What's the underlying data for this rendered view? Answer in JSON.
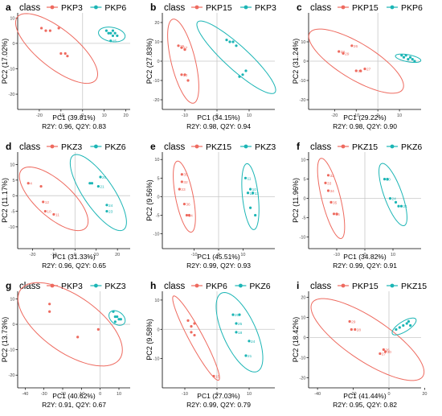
{
  "colors": {
    "red": "#ee6a5f",
    "teal": "#1bb5b5",
    "axis": "#000000",
    "refline": "#c8c8c8"
  },
  "chart_data": [
    {
      "panel": "a",
      "type": "scatter",
      "legend_title": "class",
      "groups": [
        "PKP3",
        "PKP6"
      ],
      "xlabel": "PC1 (39.81%)",
      "ylabel": "PC2 (17.02%)",
      "stats": "R2Y: 0.96, Q2Y: 0.83",
      "xlim": [
        -30,
        22
      ],
      "ylim": [
        -26,
        12
      ],
      "xticks": [
        -20,
        -10,
        0,
        10,
        20
      ],
      "yticks": [
        -20,
        -10,
        0,
        10
      ],
      "series": [
        {
          "name": "PKP3",
          "points": [
            [
              -19,
              6,
              ""
            ],
            [
              -17,
              5,
              ""
            ],
            [
              -15,
              5,
              ""
            ],
            [
              -11,
              6,
              ""
            ],
            [
              -10,
              -4,
              ""
            ],
            [
              -8,
              -4,
              ""
            ],
            [
              -7,
              -5,
              ""
            ]
          ]
        },
        {
          "name": "PKP6",
          "points": [
            [
              11,
              5,
              ""
            ],
            [
              12,
              4,
              ""
            ],
            [
              13,
              4,
              ""
            ],
            [
              14,
              5,
              ""
            ],
            [
              14,
              3,
              ""
            ],
            [
              15,
              4,
              ""
            ],
            [
              16,
              3,
              ""
            ],
            [
              13,
              1,
              "15"
            ]
          ]
        }
      ],
      "ellipses": [
        {
          "group": "PKP3",
          "cx": -12,
          "cy": -2,
          "rx": 22,
          "ry": 8,
          "angle": -33
        },
        {
          "group": "PKP6",
          "cx": 13.5,
          "cy": 3.5,
          "rx": 6.2,
          "ry": 2.8,
          "angle": -8
        }
      ]
    },
    {
      "panel": "b",
      "type": "scatter",
      "legend_title": "class",
      "groups": [
        "PKP15",
        "PKP3"
      ],
      "xlabel": "PC1 (34.15%)",
      "ylabel": "PC2 (27.83%)",
      "stats": "R2Y: 0.98, Q2Y: 0.94",
      "xlim": [
        -17,
        18
      ],
      "ylim": [
        -25,
        25
      ],
      "xticks": [
        -10,
        0,
        10
      ],
      "yticks": [
        -20,
        -10,
        0,
        10,
        20
      ],
      "series": [
        {
          "name": "PKP15",
          "points": [
            [
              -12,
              8,
              "25"
            ],
            [
              -11,
              7,
              "27"
            ],
            [
              -10,
              6,
              ""
            ],
            [
              -11,
              -7,
              "30"
            ],
            [
              -10,
              -7,
              ""
            ],
            [
              -9,
              -10,
              ""
            ]
          ]
        },
        {
          "name": "PKP3",
          "points": [
            [
              3,
              11,
              ""
            ],
            [
              4,
              10,
              ""
            ],
            [
              5,
              10,
              ""
            ],
            [
              6,
              8,
              ""
            ],
            [
              9,
              -5,
              ""
            ],
            [
              8,
              -7,
              ""
            ],
            [
              7,
              -8,
              ""
            ]
          ]
        }
      ],
      "ellipses": [
        {
          "group": "PKP15",
          "cx": -10.5,
          "cy": 0,
          "rx": 22,
          "ry": 3.8,
          "angle": -82
        },
        {
          "group": "PKP3",
          "cx": 6,
          "cy": 2,
          "rx": 22,
          "ry": 4.5,
          "angle": -58
        }
      ]
    },
    {
      "panel": "c",
      "type": "scatter",
      "legend_title": "class",
      "groups": [
        "PKP15",
        "PKP6"
      ],
      "xlabel": "PC1 (29.22%)",
      "ylabel": "PC2 (31.24%)",
      "stats": "R2Y: 0.98, Q2Y: 0.90",
      "xlim": [
        -32,
        20
      ],
      "ylim": [
        -25,
        25
      ],
      "xticks": [
        -20,
        -10,
        0,
        10
      ],
      "yticks": [
        -20,
        -10,
        0,
        10
      ],
      "series": [
        {
          "name": "PKP15",
          "points": [
            [
              -18,
              5,
              "28"
            ],
            [
              -16,
              4,
              "29"
            ],
            [
              -12,
              8,
              "26"
            ],
            [
              -10,
              -5,
              "30"
            ],
            [
              -8,
              -5,
              ""
            ],
            [
              -6,
              -4,
              "27"
            ]
          ]
        },
        {
          "name": "PKP6",
          "points": [
            [
              11,
              3,
              ""
            ],
            [
              12,
              2,
              ""
            ],
            [
              13,
              3,
              ""
            ],
            [
              14,
              1,
              ""
            ],
            [
              15,
              2,
              ""
            ],
            [
              16,
              1,
              ""
            ],
            [
              17,
              0,
              ""
            ]
          ]
        }
      ],
      "ellipses": [
        {
          "group": "PKP15",
          "cx": -10,
          "cy": 0,
          "rx": 26,
          "ry": 9,
          "angle": -35
        },
        {
          "group": "PKP6",
          "cx": 14,
          "cy": 1.5,
          "rx": 6,
          "ry": 1.8,
          "angle": -12
        }
      ]
    },
    {
      "panel": "d",
      "type": "scatter",
      "legend_title": "class",
      "groups": [
        "PKZ3",
        "PKZ6"
      ],
      "xlabel": "PC1 (31.33%)",
      "ylabel": "PC2 (11.17%)",
      "stats": "R2Y: 0.96, Q2Y: 0.65",
      "xlim": [
        -27,
        26
      ],
      "ylim": [
        -17,
        14
      ],
      "xticks": [
        -20,
        -10,
        0,
        10,
        20
      ],
      "yticks": [
        -10,
        -5,
        0,
        5,
        10
      ],
      "series": [
        {
          "name": "PKZ3",
          "points": [
            [
              -22,
              4,
              "4"
            ],
            [
              -16,
              3,
              ""
            ],
            [
              -15,
              -2,
              "12"
            ],
            [
              -14,
              -5,
              "10"
            ],
            [
              -10,
              -6,
              "11"
            ]
          ]
        },
        {
          "name": "PKZ6",
          "points": [
            [
              7,
              4,
              ""
            ],
            [
              8,
              4,
              ""
            ],
            [
              12,
              6,
              "20"
            ],
            [
              11,
              3,
              "21"
            ],
            [
              15,
              -3,
              "24"
            ],
            [
              15,
              -5,
              "23"
            ]
          ]
        }
      ],
      "ellipses": [
        {
          "group": "PKZ3",
          "cx": -10,
          "cy": -1,
          "rx": 18,
          "ry": 6.5,
          "angle": -28
        },
        {
          "group": "PKZ6",
          "cx": 11,
          "cy": 1,
          "rx": 17,
          "ry": 6,
          "angle": -42
        }
      ]
    },
    {
      "panel": "e",
      "type": "scatter",
      "legend_title": "class",
      "groups": [
        "PKZ15",
        "PKZ3"
      ],
      "xlabel": "PC1 (45.51%)",
      "ylabel": "PC2 (9.56%)",
      "stats": "R2Y: 0.99, Q2Y: 0.93",
      "xlim": [
        -23,
        23
      ],
      "ylim": [
        -14,
        12
      ],
      "xticks": [
        -10,
        0,
        10
      ],
      "yticks": [
        -10,
        -5,
        0,
        5,
        10
      ],
      "series": [
        {
          "name": "PKZ15",
          "points": [
            [
              -15,
              6,
              "35"
            ],
            [
              -15,
              4,
              "32"
            ],
            [
              -16,
              2,
              "33"
            ],
            [
              -14,
              -2,
              "36"
            ],
            [
              -13,
              -5,
              "34"
            ],
            [
              -12,
              -5,
              ""
            ]
          ]
        },
        {
          "name": "PKZ3",
          "points": [
            [
              11,
              5,
              "11"
            ],
            [
              12,
              1,
              "12"
            ],
            [
              13,
              2,
              "10"
            ],
            [
              14,
              1,
              "13"
            ],
            [
              13,
              -3,
              ""
            ],
            [
              15,
              -5,
              ""
            ]
          ]
        }
      ],
      "ellipses": [
        {
          "group": "PKZ15",
          "cx": -14,
          "cy": 0,
          "rx": 10,
          "ry": 3.5,
          "angle": -72
        },
        {
          "group": "PKZ3",
          "cx": 13,
          "cy": 0,
          "rx": 9,
          "ry": 3.2,
          "angle": -80
        }
      ]
    },
    {
      "panel": "f",
      "type": "scatter",
      "legend_title": "class",
      "groups": [
        "PKZ15",
        "PKZ6"
      ],
      "xlabel": "PC1 (34.82%)",
      "ylabel": "PC2 (11.96%)",
      "stats": "R2Y: 0.99, Q2Y: 0.91",
      "xlim": [
        -20,
        20
      ],
      "ylim": [
        -13,
        12
      ],
      "xticks": [
        -10,
        0,
        10
      ],
      "yticks": [
        -10,
        -5,
        0,
        5,
        10
      ],
      "series": [
        {
          "name": "PKZ15",
          "points": [
            [
              -13,
              6,
              "32"
            ],
            [
              -14,
              4,
              "33"
            ],
            [
              -13,
              2,
              "34"
            ],
            [
              -12,
              -1,
              "35"
            ],
            [
              -11,
              -4,
              "36"
            ],
            [
              -10,
              -4,
              ""
            ]
          ]
        },
        {
          "name": "PKZ6",
          "points": [
            [
              7,
              5,
              "20"
            ],
            [
              8,
              5,
              ""
            ],
            [
              9,
              0,
              "24"
            ],
            [
              11,
              -1,
              ""
            ],
            [
              12,
              -2,
              ""
            ],
            [
              13,
              -2,
              "21"
            ]
          ]
        }
      ],
      "ellipses": [
        {
          "group": "PKZ15",
          "cx": -12,
          "cy": 0,
          "rx": 11,
          "ry": 3.2,
          "angle": -70
        },
        {
          "group": "PKZ6",
          "cx": 10,
          "cy": 1,
          "rx": 9,
          "ry": 3,
          "angle": -62
        }
      ]
    },
    {
      "panel": "g",
      "type": "scatter",
      "legend_title": "class",
      "groups": [
        "PKP3",
        "PKZ3"
      ],
      "xlabel": "PC1 (40.62%)",
      "ylabel": "PC2 (13.73%)",
      "stats": "R2Y: 0.91, Q2Y: 0.67",
      "xlim": [
        -44,
        16
      ],
      "ylim": [
        -25,
        13
      ],
      "xticks": [
        -40,
        -30,
        -20,
        -10,
        0,
        10
      ],
      "yticks": [
        -20,
        -10,
        0,
        10
      ],
      "series": [
        {
          "name": "PKP3",
          "points": [
            [
              -27,
              8,
              ""
            ],
            [
              -27,
              5,
              ""
            ],
            [
              -12,
              -5,
              ""
            ],
            [
              -1,
              -2,
              ""
            ]
          ]
        },
        {
          "name": "PKZ3",
          "points": [
            [
              7,
              5,
              ""
            ],
            [
              8,
              3,
              ""
            ],
            [
              9,
              3,
              ""
            ],
            [
              8,
              1,
              ""
            ],
            [
              10,
              2,
              ""
            ],
            [
              11,
              2,
              ""
            ]
          ]
        }
      ],
      "ellipses": [
        {
          "group": "PKP3",
          "cx": -16,
          "cy": 0,
          "rx": 30,
          "ry": 12,
          "angle": -24
        },
        {
          "group": "PKZ3",
          "cx": 9,
          "cy": 2.5,
          "rx": 4.5,
          "ry": 2.6,
          "angle": -20
        }
      ]
    },
    {
      "panel": "h",
      "type": "scatter",
      "legend_title": "class",
      "groups": [
        "PKP6",
        "PKZ6"
      ],
      "xlabel": "PC1 (27.03%)",
      "ylabel": "PC2 (9.58%)",
      "stats": "R2Y: 0.99, Q2Y: 0.79",
      "xlim": [
        -17,
        18
      ],
      "ylim": [
        -20,
        13
      ],
      "xticks": [
        -10,
        0,
        10
      ],
      "yticks": [
        -10,
        0,
        10
      ],
      "series": [
        {
          "name": "PKP6",
          "points": [
            [
              -9,
              3,
              ""
            ],
            [
              -8,
              1,
              ""
            ],
            [
              -7,
              2,
              ""
            ],
            [
              -8,
              -1,
              ""
            ],
            [
              -7,
              -2,
              ""
            ],
            [
              -1,
              -16,
              "15"
            ]
          ]
        },
        {
          "name": "PKZ6",
          "points": [
            [
              5,
              5,
              "20"
            ],
            [
              7,
              5,
              ""
            ],
            [
              6,
              2,
              "25"
            ],
            [
              6,
              -1,
              "18"
            ],
            [
              10,
              -4,
              "24"
            ],
            [
              9,
              -9,
              "21"
            ]
          ]
        }
      ],
      "ellipses": [
        {
          "group": "PKP6",
          "cx": -6.5,
          "cy": -3,
          "rx": 16,
          "ry": 2.2,
          "angle": -64
        },
        {
          "group": "PKZ6",
          "cx": 7,
          "cy": -1,
          "rx": 14.5,
          "ry": 5.2,
          "angle": -68
        }
      ]
    },
    {
      "panel": "i",
      "type": "scatter",
      "legend_title": "class",
      "groups": [
        "PKP15",
        "PKZ15"
      ],
      "xlabel": "PC1 (41.44%)",
      "ylabel": "PC2 (18.42%)",
      "stats": "R2Y: 0.95, Q2Y: 0.82",
      "xlim": [
        -45,
        18
      ],
      "ylim": [
        -25,
        23
      ],
      "xticks": [
        -40,
        -20,
        0,
        20
      ],
      "yticks": [
        -20,
        -10,
        0,
        10,
        20
      ],
      "series": [
        {
          "name": "PKP15",
          "points": [
            [
              -22,
              8,
              "29"
            ],
            [
              -21,
              4,
              ""
            ],
            [
              -19,
              4,
              "28"
            ],
            [
              -3,
              -6,
              "26"
            ],
            [
              -2,
              -7,
              "30"
            ],
            [
              -5,
              -8,
              "27"
            ]
          ]
        },
        {
          "name": "PKZ15",
          "points": [
            [
              4,
              4,
              ""
            ],
            [
              6,
              5,
              ""
            ],
            [
              8,
              6,
              ""
            ],
            [
              10,
              7,
              ""
            ],
            [
              11,
              8,
              ""
            ],
            [
              12,
              6,
              ""
            ]
          ]
        }
      ],
      "ellipses": [
        {
          "group": "PKP15",
          "cx": -12,
          "cy": -1,
          "rx": 36,
          "ry": 11,
          "angle": -30
        },
        {
          "group": "PKZ15",
          "cx": 8.5,
          "cy": 5.5,
          "rx": 7.5,
          "ry": 2.6,
          "angle": 28
        }
      ]
    }
  ]
}
